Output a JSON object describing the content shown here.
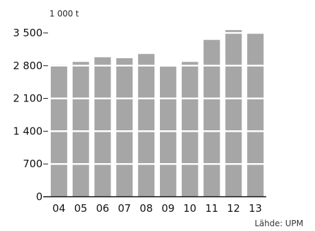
{
  "chart_data": {
    "type": "bar",
    "unit_label": "1 000 t",
    "categories": [
      "04",
      "05",
      "06",
      "07",
      "08",
      "09",
      "10",
      "11",
      "12",
      "13"
    ],
    "values": [
      2820,
      2880,
      2980,
      2960,
      3050,
      2780,
      2880,
      3350,
      3560,
      3510
    ],
    "yticks": [
      0,
      700,
      1400,
      2100,
      2800,
      3500
    ],
    "ytick_labels": [
      "0",
      "700",
      "1 400",
      "2 100",
      "2 800",
      "3 500"
    ],
    "ylim": [
      0,
      3500
    ],
    "grid": true,
    "source": "Lähde: UPM"
  }
}
